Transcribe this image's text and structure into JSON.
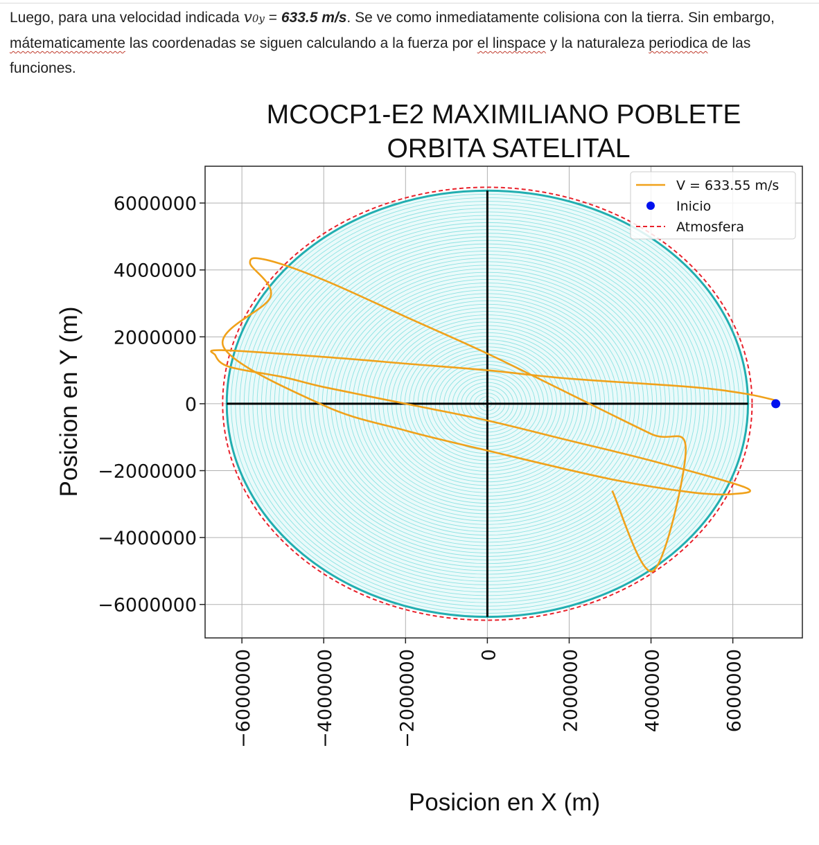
{
  "paragraph": {
    "p1": "Luego, para una velocidad indicada ",
    "math_v": "v",
    "math_sub": "0y",
    "p2": " = ",
    "value": "633.5 m/s",
    "p3": ". Se ve como inmediatamente colisiona con la tierra. Sin embargo, ",
    "w1": "mátematicamente",
    "p4": " las coordenadas se siguen calculando a la fuerza por ",
    "w2": "el linspace",
    "p5": " y la naturaleza ",
    "w3": "periodica",
    "p6": " de las funciones."
  },
  "chart_data": {
    "type": "line",
    "title_line1": "MCOCP1-E2 MAXIMILIANO POBLETE",
    "title_line2": "ORBITA SATELITAL",
    "xlabel": "Posicion en X (m)",
    "ylabel": "Posicion en Y (m)",
    "xlim": [
      -6900000,
      7700000
    ],
    "ylim": [
      -7000000,
      7100000
    ],
    "xticks": [
      -6000000,
      -4000000,
      -2000000,
      0,
      2000000,
      4000000,
      6000000
    ],
    "xtick_labels": [
      "−6000000",
      "−4000000",
      "−2000000",
      "0",
      "2000000",
      "4000000",
      "6000000"
    ],
    "yticks": [
      6000000,
      4000000,
      2000000,
      0,
      -2000000,
      -4000000,
      -6000000
    ],
    "ytick_labels": [
      "6000000",
      "4000000",
      "2000000",
      "0",
      "−2000000",
      "−4000000",
      "−6000000"
    ],
    "grid": true,
    "legend_position": "top-right",
    "earth_radius": 6371000,
    "atmosphere_radius": 6471000,
    "colors": {
      "orbit": "#f0a11a",
      "start": "#0011ee",
      "atmosphere": "#e8202a",
      "earth_ring": "#3fcfcf",
      "earth_fill": "#eafafa",
      "axis_cross": "#000000",
      "grid": "#b0b0b0"
    },
    "series": [
      {
        "name": "V = 633.55 m/s",
        "kind": "orbit",
        "x": [
          7050000,
          6300000,
          5000000,
          2000000,
          0,
          -2000000,
          -4000000,
          -6500000,
          -6650000,
          -6300000,
          -5000000,
          -4000000,
          -2000000,
          0,
          2000000,
          4000000,
          6300000,
          6000000,
          5000000,
          3000000,
          0,
          -2000000,
          -4000000,
          -6450000,
          -5300000,
          -5800000,
          -5400000,
          -4000000,
          -2000000,
          0,
          2000000,
          4000000,
          4850000,
          4050000,
          3050000
        ],
        "y": [
          100000,
          300000,
          500000,
          750000,
          1000000,
          1200000,
          1400000,
          1600000,
          1450000,
          1100000,
          800000,
          500000,
          0,
          -500000,
          -1100000,
          -1700000,
          -2500000,
          -2700000,
          -2650000,
          -2250000,
          -1400000,
          -800000,
          -50000,
          1700000,
          3200000,
          4200000,
          4300000,
          3700000,
          2600000,
          1500000,
          300000,
          -900000,
          -1350000,
          -5000000,
          -2600000
        ]
      }
    ],
    "start_point": {
      "name": "Inicio",
      "x": 7050000,
      "y": 0
    },
    "atmosphere_label": "Atmosfera"
  }
}
